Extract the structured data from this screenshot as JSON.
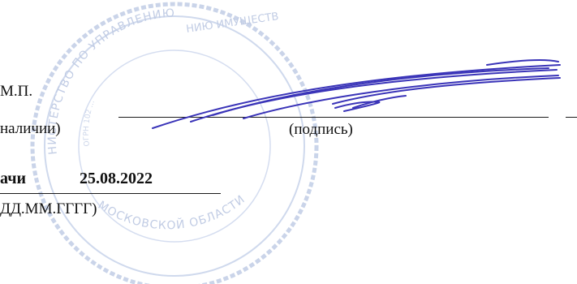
{
  "stamp_seal": {
    "top_text": "НИЮ ИМУЩЕСТВ",
    "left_text": "НИСТЕРСТВО ПО УПРАВЛЕНИЮ",
    "inner_text": "ОГРН 102 ...",
    "lower_text": "МОСКОВСКОЙ ОБЛАСТИ",
    "color": "#8fa3cf"
  },
  "seal_section": {
    "mp_text": "М.П.",
    "mp_note": "наличии)"
  },
  "signature_section": {
    "caption": "(подпись)",
    "ink_color": "#3a34b8"
  },
  "issue_section": {
    "label": "ачи",
    "date": "25.08.2022",
    "format_hint": "ДД.ММ.ГГГГ)"
  }
}
